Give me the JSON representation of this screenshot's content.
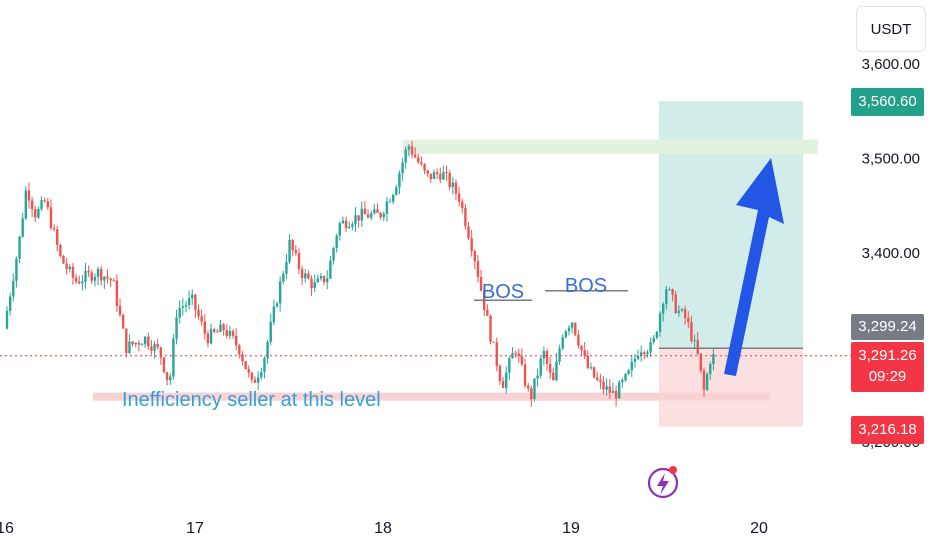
{
  "currency": "USDT",
  "colors": {
    "up": "#26a69a",
    "down": "#ef5350",
    "target_zone": "#d2ede9",
    "stop_zone": "#fce0e0",
    "supply_zone": "#e2f2de",
    "demand_line": "#f9d3d3",
    "arrow": "#2456e6",
    "target_tag": "#22a089",
    "entry_tag": "#787b86",
    "last_tag": "#f23645",
    "stop_tag": "#f23645"
  },
  "price_tags": {
    "target": "3,560.60",
    "entry": "3,299.24",
    "last_price": "3,291.26",
    "countdown": "09:29",
    "stop": "3,216.18"
  },
  "annotations": {
    "bos_1": "BOS",
    "bos_2": "BOS",
    "note": "Inefficiency seller at this level"
  },
  "icons": [
    "flash-icon"
  ],
  "chart_data": {
    "type": "candlestick",
    "y_axis": {
      "ticks": [
        "3,600.00",
        "3,500.00",
        "3,400.00",
        "3,200.00"
      ],
      "range": [
        3160,
        3630
      ]
    },
    "x_axis": {
      "ticks": [
        "16",
        "17",
        "18",
        "19",
        "20"
      ]
    },
    "path_keypoints": [
      [
        "16.00",
        3320
      ],
      [
        "16.08",
        3410
      ],
      [
        "16.12",
        3470
      ],
      [
        "16.17",
        3440
      ],
      [
        "16.22",
        3455
      ],
      [
        "16.30",
        3395
      ],
      [
        "16.38",
        3370
      ],
      [
        "16.50",
        3380
      ],
      [
        "16.58",
        3370
      ],
      [
        "16.65",
        3300
      ],
      [
        "16.75",
        3310
      ],
      [
        "16.83",
        3295
      ],
      [
        "16.88",
        3260
      ],
      [
        "16.92",
        3340
      ],
      [
        "17.00",
        3350
      ],
      [
        "17.08",
        3310
      ],
      [
        "17.17",
        3320
      ],
      [
        "17.25",
        3300
      ],
      [
        "17.32",
        3260
      ],
      [
        "17.38",
        3285
      ],
      [
        "17.45",
        3350
      ],
      [
        "17.52",
        3410
      ],
      [
        "17.58",
        3380
      ],
      [
        "17.65",
        3365
      ],
      [
        "17.72",
        3375
      ],
      [
        "17.78",
        3430
      ],
      [
        "17.90",
        3440
      ],
      [
        "18.00",
        3440
      ],
      [
        "18.08",
        3470
      ],
      [
        "18.15",
        3515
      ],
      [
        "18.25",
        3480
      ],
      [
        "18.33",
        3485
      ],
      [
        "18.42",
        3460
      ],
      [
        "18.50",
        3400
      ],
      [
        "18.58",
        3320
      ],
      [
        "18.65",
        3260
      ],
      [
        "18.72",
        3300
      ],
      [
        "18.80",
        3245
      ],
      [
        "18.87",
        3295
      ],
      [
        "18.92",
        3260
      ],
      [
        "18.97",
        3315
      ],
      [
        "19.02",
        3330
      ],
      [
        "19.10",
        3280
      ],
      [
        "19.17",
        3260
      ],
      [
        "19.25",
        3250
      ],
      [
        "19.32",
        3270
      ],
      [
        "19.38",
        3300
      ],
      [
        "19.45",
        3300
      ],
      [
        "19.52",
        3365
      ],
      [
        "19.58",
        3340
      ],
      [
        "19.63",
        3330
      ],
      [
        "19.70",
        3285
      ],
      [
        "19.72",
        3250
      ],
      [
        "19.76",
        3290
      ]
    ],
    "last_price": 3291.26,
    "levels": {
      "target": 3560.6,
      "entry": 3299.24,
      "stop": 3216.18,
      "supply_zone": [
        3505,
        3520
      ],
      "demand_line": 3248,
      "bos_1": 3350,
      "bos_2": 3360
    }
  }
}
